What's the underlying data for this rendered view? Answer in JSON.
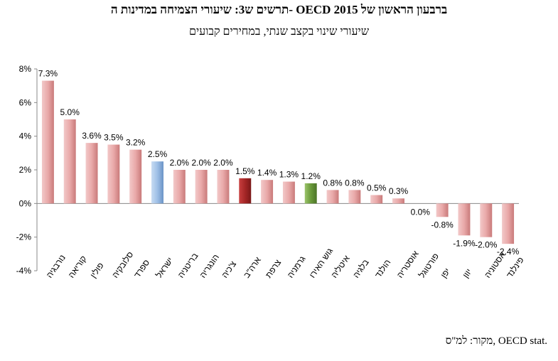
{
  "title": "תרשים ש3: שיעורי הצמיחה במדינות ה- OECD ברבעון הראשון של 2015",
  "subtitle": "שיעורי שינוי בקצב שנתי, במחירים קבועים",
  "source": "מקור: למ\"ס, OECD stat.",
  "chart_data": {
    "type": "bar",
    "categories": [
      "נורבגיה",
      "קוריאה",
      "פולין",
      "סלובקיה",
      "ספרד",
      "ישראל",
      "בריטניה",
      "הונגריה",
      "צ'כיה",
      "ארה\"ב",
      "צרפת",
      "גרמניה",
      "גוש האירו",
      "איטליה",
      "בלגיה",
      "הולנד",
      "אוסטריה",
      "פורטוגל",
      "יפן",
      "יוון",
      "אסטוניה",
      "פינלנד"
    ],
    "values": [
      7.3,
      5.0,
      3.6,
      3.5,
      3.2,
      2.5,
      2.0,
      2.0,
      2.0,
      1.5,
      1.4,
      1.3,
      1.2,
      0.8,
      0.8,
      0.5,
      0.3,
      0.0,
      -0.8,
      -1.9,
      -2.0,
      -2.4
    ],
    "labels": [
      "7.3%",
      "5.0%",
      "3.6%",
      "3.5%",
      "3.2%",
      "2.5%",
      "2.0%",
      "2.0%",
      "2.0%",
      "1.5%",
      "1.4%",
      "1.3%",
      "1.2%",
      "0.8%",
      "0.8%",
      "0.5%",
      "0.3%",
      "0.0%",
      "-0.8%",
      "-1.9%",
      "-2.0%",
      "-2.4%"
    ],
    "highlight": {
      "ישראל": "#7fa8d8",
      "ארה\"ב": "#a52626",
      "גוש האירו": "#6a9a3a"
    },
    "default_color": "#e3a0a0",
    "ylim": [
      -4,
      8
    ],
    "yticks": [
      -4,
      -2,
      0,
      2,
      4,
      6,
      8
    ],
    "ytick_labels": [
      "-4%",
      "-2%",
      "0%",
      "2%",
      "4%",
      "6%",
      "8%"
    ],
    "grid": false
  }
}
